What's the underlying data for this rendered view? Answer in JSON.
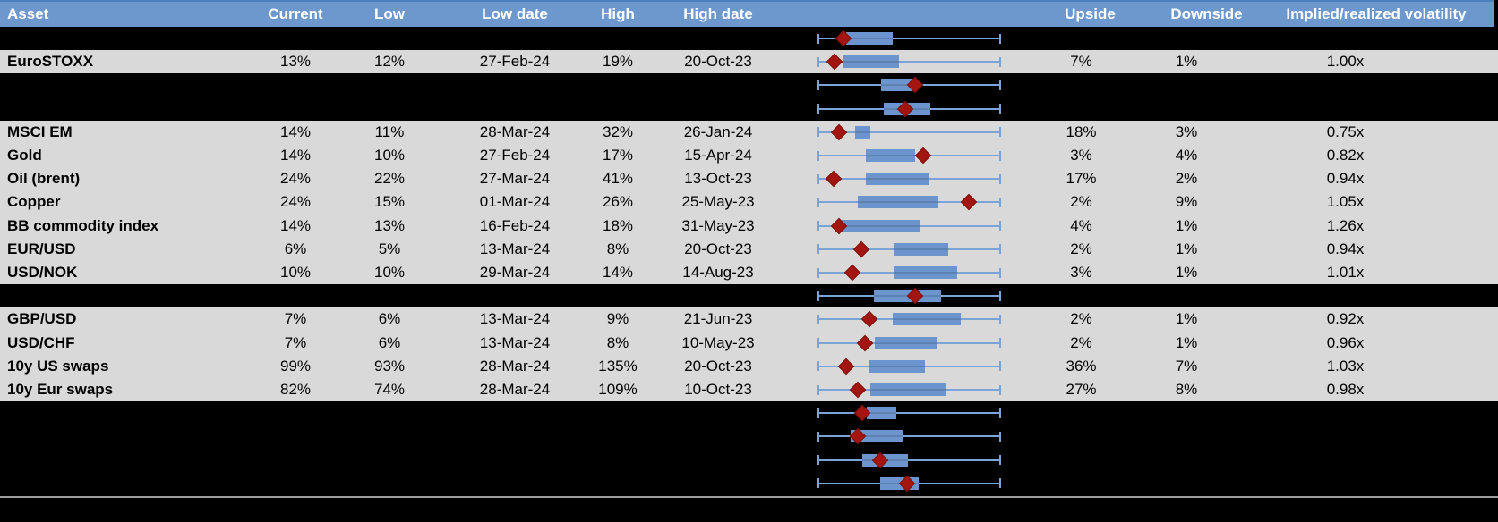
{
  "colors": {
    "header_bg": "#6C98CE",
    "row_gray": "#D9D9D9",
    "row_black": "#000000",
    "box_blue": "#6B95CC",
    "whisker_blue": "#7AA3D8",
    "marker_red": "#A21511",
    "marker_border": "#7E100B",
    "divider_gray": "#9E9E9E"
  },
  "chart_data": {
    "type": "table",
    "columns": [
      "Asset",
      "Current",
      "Low",
      "Low date",
      "High",
      "High date",
      "Upside",
      "Downside",
      "Implied/realized volatility"
    ],
    "embedded_chart": "boxplot",
    "whisker_range": [
      0,
      1
    ],
    "rows": [
      {
        "values": null,
        "box": [
          0.156,
          0.408
        ],
        "marker": 0.14
      },
      {
        "values": [
          "EuroSTOXX",
          "13%",
          "12%",
          "27-Feb-24",
          "19%",
          "20-Oct-23",
          "7%",
          "1%",
          "1.00x"
        ],
        "box": [
          0.14,
          0.445
        ],
        "marker": 0.093
      },
      {
        "values": null,
        "box": [
          0.348,
          0.53
        ],
        "marker": 0.533
      },
      {
        "values": null,
        "box": [
          0.36,
          0.615
        ],
        "marker": 0.477
      },
      {
        "values": [
          "MSCI EM",
          "14%",
          "11%",
          "28-Mar-24",
          "32%",
          "26-Jan-24",
          "18%",
          "3%",
          "0.75x"
        ],
        "box": [
          0.205,
          0.288
        ],
        "marker": 0.117
      },
      {
        "values": [
          "Gold",
          "14%",
          "10%",
          "27-Feb-24",
          "17%",
          "15-Apr-24",
          "3%",
          "4%",
          "0.82x"
        ],
        "box": [
          0.262,
          0.533
        ],
        "marker": 0.576
      },
      {
        "values": [
          "Oil (brent)",
          "24%",
          "22%",
          "27-Mar-24",
          "41%",
          "13-Oct-23",
          "17%",
          "2%",
          "0.94x"
        ],
        "box": [
          0.262,
          0.603
        ],
        "marker": 0.086
      },
      {
        "values": [
          "Copper",
          "24%",
          "15%",
          "01-Mar-24",
          "26%",
          "25-May-23",
          "2%",
          "9%",
          "1.05x"
        ],
        "box": [
          0.218,
          0.657
        ],
        "marker": 0.823
      },
      {
        "values": [
          "BB commodity index",
          "14%",
          "13%",
          "16-Feb-24",
          "18%",
          "31-May-23",
          "4%",
          "1%",
          "1.26x"
        ],
        "box": [
          0.132,
          0.555
        ],
        "marker": 0.119
      },
      {
        "values": [
          "EUR/USD",
          "6%",
          "5%",
          "13-Mar-24",
          "8%",
          "20-Oct-23",
          "2%",
          "1%",
          "0.94x"
        ],
        "box": [
          0.413,
          0.712
        ],
        "marker": 0.24
      },
      {
        "values": [
          "USD/NOK",
          "10%",
          "10%",
          "29-Mar-24",
          "14%",
          "14-Aug-23",
          "3%",
          "1%",
          "1.01x"
        ],
        "box": [
          0.413,
          0.761
        ],
        "marker": 0.189
      },
      {
        "values": null,
        "box": [
          0.306,
          0.673
        ],
        "marker": 0.53
      },
      {
        "values": [
          "GBP/USD",
          "7%",
          "6%",
          "13-Mar-24",
          "9%",
          "21-Jun-23",
          "2%",
          "1%",
          "0.92x"
        ],
        "box": [
          0.408,
          0.782
        ],
        "marker": 0.281
      },
      {
        "values": [
          "USD/CHF",
          "7%",
          "6%",
          "13-Mar-24",
          "8%",
          "10-May-23",
          "2%",
          "1%",
          "0.96x"
        ],
        "box": [
          0.311,
          0.652
        ],
        "marker": 0.259
      },
      {
        "values": [
          "10y US swaps",
          "99%",
          "93%",
          "28-Mar-24",
          "135%",
          "20-Oct-23",
          "36%",
          "7%",
          "1.03x"
        ],
        "box": [
          0.283,
          0.587
        ],
        "marker": 0.156
      },
      {
        "values": [
          "10y Eur swaps",
          "82%",
          "74%",
          "28-Mar-24",
          "109%",
          "10-Oct-23",
          "27%",
          "8%",
          "0.98x"
        ],
        "box": [
          0.286,
          0.698
        ],
        "marker": 0.218
      },
      {
        "values": null,
        "box": [
          0.267,
          0.429
        ],
        "marker": 0.242
      },
      {
        "values": null,
        "box": [
          0.18,
          0.465
        ],
        "marker": 0.221
      },
      {
        "values": null,
        "box": [
          0.242,
          0.494
        ],
        "marker": 0.343
      },
      {
        "values": null,
        "box": [
          0.343,
          0.551
        ],
        "marker": 0.489
      }
    ]
  }
}
